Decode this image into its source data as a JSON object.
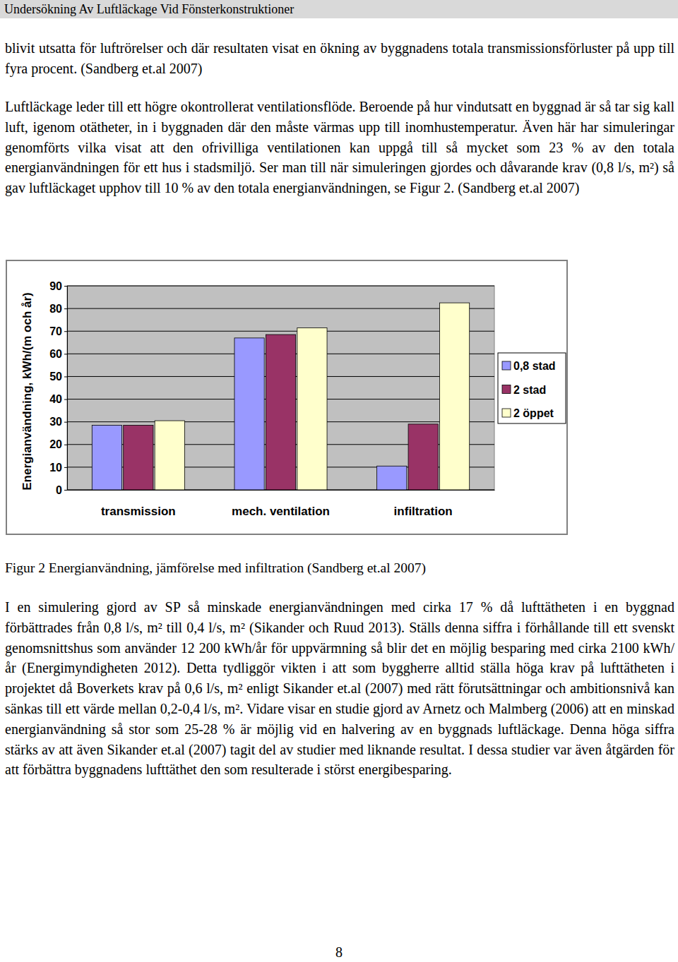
{
  "header": {
    "title": "Undersökning Av Luftläckage Vid Fönsterkonstruktioner"
  },
  "text_before": [
    "blivit utsatta för luftrörelser och där resultaten visat en ökning av byggnadens totala transmissionsförluster på upp till fyra procent. (Sandberg et.al 2007)",
    "Luftläckage leder till ett högre okontrollerat ventilationsflöde. Beroende på hur vindutsatt en byggnad är så tar sig kall luft, igenom otätheter, in i byggnaden där den måste värmas upp till inomhustemperatur. Även här har simuleringar genomförts vilka visat att den ofrivilliga ventilationen kan uppgå till så mycket som 23 % av den totala energianvändningen för ett hus i stadsmiljö. Ser man till när simuleringen gjordes och dåvarande krav (0,8 l/s, m²) så gav luftläckaget upphov till 10 % av den totala energianvändningen, se Figur 2. (Sandberg et.al 2007)"
  ],
  "chart_data": {
    "type": "bar",
    "y_label": "Energianvändning, kWh/(m och år)",
    "categories": [
      "transmission",
      "mech. ventilation",
      "infiltration"
    ],
    "series": [
      {
        "name": "0,8 stad",
        "color": "#9999ff",
        "values": [
          28.5,
          67,
          10.5
        ]
      },
      {
        "name": "2 stad",
        "color": "#993366",
        "values": [
          28.5,
          68.5,
          29
        ]
      },
      {
        "name": "2 öppet",
        "color": "#ffffcc",
        "values": [
          30.5,
          71.5,
          82.5
        ]
      }
    ],
    "ylim": [
      0,
      90
    ],
    "yticks": [
      0,
      10,
      20,
      30,
      40,
      50,
      60,
      70,
      80,
      90
    ],
    "grid": true,
    "legend": "right"
  },
  "caption": "Figur 2 Energianvändning, jämförelse med infiltration (Sandberg et.al 2007)",
  "text_after": [
    "I en simulering gjord av SP så minskade energianvändningen med cirka 17 % då lufttätheten i en byggnad förbättrades från 0,8 l/s, m² till 0,4 l/s, m² (Sikander och Ruud 2013). Ställs denna siffra i förhållande till ett svenskt genomsnittshus som använder 12 200 kWh/år för uppvärmning så blir det en möjlig besparing med cirka 2100 kWh/år (Energimyndigheten 2012). Detta tydliggör vikten i att som byggherre alltid ställa höga krav på lufttätheten i projektet då Boverkets krav på 0,6 l/s, m² enligt Sikander et.al (2007) med rätt förutsättningar och ambitionsnivå kan sänkas till ett värde mellan 0,2-0,4 l/s, m². Vidare visar en studie gjord av Arnetz och Malmberg (2006) att en minskad energianvändning så stor som 25-28 % är möjlig vid en halvering av en byggnads luftläckage. Denna höga siffra stärks av att även Sikander et.al (2007) tagit del av studier med liknande resultat. I dessa studier var även åtgärden för att förbättra byggnadens lufttäthet den som resulterade i störst energibesparing."
  ],
  "page_number": 8
}
